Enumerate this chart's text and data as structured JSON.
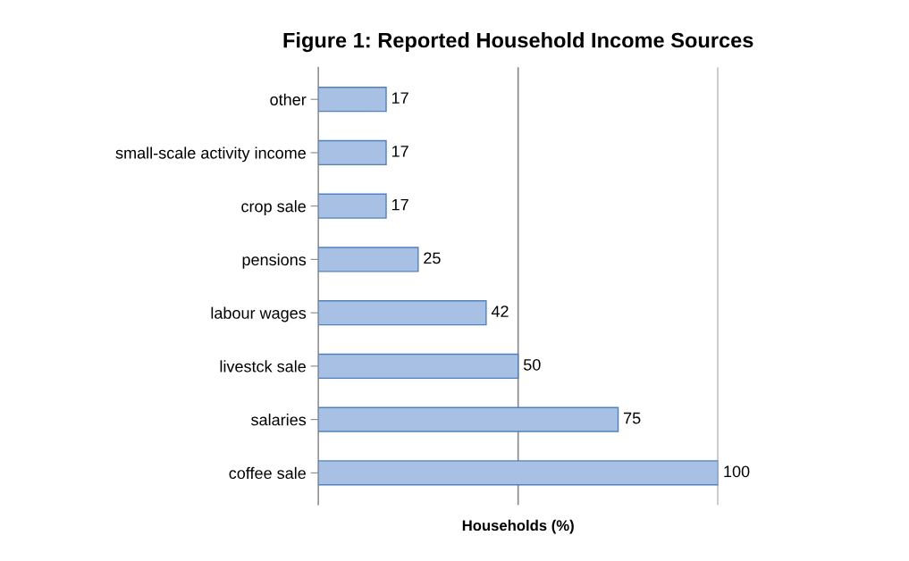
{
  "chart_data": {
    "type": "bar",
    "orientation": "horizontal",
    "title": "Figure 1: Reported Household Income Sources",
    "xlabel": "Households (%)",
    "categories": [
      "other",
      "small-scale activity income",
      "crop sale",
      "pensions",
      "labour wages",
      "livestck sale",
      "salaries",
      "coffee sale"
    ],
    "values": [
      17,
      17,
      17,
      25,
      42,
      50,
      75,
      100
    ],
    "color": "#a7c0e3",
    "xlim": [
      0,
      100
    ],
    "xticks": [
      {
        "value": 0,
        "label": null
      },
      {
        "value": 50,
        "label": null
      },
      {
        "value": 100,
        "label": null
      }
    ],
    "tick_labels": "y",
    "grid": "x",
    "data_labels": true,
    "legend": false
  }
}
